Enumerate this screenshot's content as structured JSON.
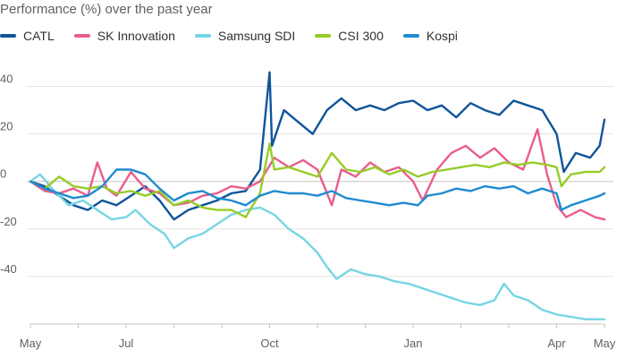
{
  "chart_data": {
    "type": "line",
    "title": "Performance (%) over the past year",
    "xlabel": "",
    "ylabel": "",
    "ylim": [
      -60,
      47
    ],
    "yticks": [
      40,
      20,
      0,
      -20,
      -40
    ],
    "xlim": [
      0,
      12
    ],
    "xticks": [
      {
        "label": "May",
        "x": 0
      },
      {
        "label": "Jul",
        "x": 2
      },
      {
        "label": "Oct",
        "x": 5
      },
      {
        "label": "Jan",
        "x": 8
      },
      {
        "label": "Apr",
        "x": 11
      },
      {
        "label": "May",
        "x": 12
      }
    ],
    "grid": true,
    "legend_position": "top-left",
    "series": [
      {
        "name": "CATL",
        "color": "#0f5499",
        "points": [
          [
            0,
            0
          ],
          [
            0.3,
            -2
          ],
          [
            0.6,
            -6
          ],
          [
            0.9,
            -10
          ],
          [
            1.2,
            -12
          ],
          [
            1.5,
            -8
          ],
          [
            1.8,
            -10
          ],
          [
            2.1,
            -6
          ],
          [
            2.4,
            -2
          ],
          [
            2.7,
            -8
          ],
          [
            3.0,
            -16
          ],
          [
            3.3,
            -12
          ],
          [
            3.6,
            -10
          ],
          [
            3.9,
            -8
          ],
          [
            4.2,
            -5
          ],
          [
            4.5,
            -4
          ],
          [
            4.8,
            5
          ],
          [
            5.0,
            46
          ],
          [
            5.05,
            15
          ],
          [
            5.3,
            30
          ],
          [
            5.6,
            25
          ],
          [
            5.9,
            20
          ],
          [
            6.2,
            30
          ],
          [
            6.5,
            35
          ],
          [
            6.8,
            30
          ],
          [
            7.1,
            32
          ],
          [
            7.4,
            30
          ],
          [
            7.7,
            33
          ],
          [
            8.0,
            34
          ],
          [
            8.3,
            30
          ],
          [
            8.6,
            32
          ],
          [
            8.9,
            27
          ],
          [
            9.2,
            33
          ],
          [
            9.5,
            30
          ],
          [
            9.8,
            28
          ],
          [
            10.1,
            34
          ],
          [
            10.4,
            32
          ],
          [
            10.7,
            30
          ],
          [
            11.0,
            20
          ],
          [
            11.15,
            4
          ],
          [
            11.4,
            12
          ],
          [
            11.7,
            10
          ],
          [
            11.9,
            15
          ],
          [
            12.0,
            26
          ]
        ]
      },
      {
        "name": "SK Innovation",
        "color": "#e95d8c",
        "points": [
          [
            0,
            0
          ],
          [
            0.3,
            -4
          ],
          [
            0.6,
            -5
          ],
          [
            0.9,
            -3
          ],
          [
            1.2,
            -6
          ],
          [
            1.4,
            8
          ],
          [
            1.6,
            -3
          ],
          [
            1.8,
            -6
          ],
          [
            2.1,
            4
          ],
          [
            2.4,
            -3
          ],
          [
            2.7,
            -5
          ],
          [
            3.0,
            -10
          ],
          [
            3.3,
            -9
          ],
          [
            3.6,
            -6
          ],
          [
            3.9,
            -5
          ],
          [
            4.2,
            -2
          ],
          [
            4.5,
            -3
          ],
          [
            4.8,
            0
          ],
          [
            5.1,
            10
          ],
          [
            5.4,
            6
          ],
          [
            5.7,
            9
          ],
          [
            6.0,
            5
          ],
          [
            6.3,
            -10
          ],
          [
            6.5,
            5
          ],
          [
            6.8,
            2
          ],
          [
            7.1,
            8
          ],
          [
            7.4,
            4
          ],
          [
            7.7,
            6
          ],
          [
            8.0,
            0
          ],
          [
            8.2,
            -8
          ],
          [
            8.5,
            5
          ],
          [
            8.8,
            12
          ],
          [
            9.1,
            15
          ],
          [
            9.4,
            10
          ],
          [
            9.7,
            14
          ],
          [
            10.0,
            8
          ],
          [
            10.3,
            5
          ],
          [
            10.6,
            22
          ],
          [
            10.8,
            3
          ],
          [
            11.0,
            -10
          ],
          [
            11.2,
            -15
          ],
          [
            11.5,
            -12
          ],
          [
            11.8,
            -15
          ],
          [
            12.0,
            -16
          ]
        ]
      },
      {
        "name": "Samsung SDI",
        "color": "#76d5e3",
        "points": [
          [
            0,
            0
          ],
          [
            0.2,
            3
          ],
          [
            0.5,
            -4
          ],
          [
            0.8,
            -10
          ],
          [
            1.1,
            -8
          ],
          [
            1.4,
            -12
          ],
          [
            1.7,
            -16
          ],
          [
            2.0,
            -15
          ],
          [
            2.2,
            -12
          ],
          [
            2.5,
            -18
          ],
          [
            2.8,
            -22
          ],
          [
            3.0,
            -28
          ],
          [
            3.3,
            -24
          ],
          [
            3.6,
            -22
          ],
          [
            3.9,
            -18
          ],
          [
            4.2,
            -14
          ],
          [
            4.5,
            -12
          ],
          [
            4.8,
            -11
          ],
          [
            5.1,
            -14
          ],
          [
            5.4,
            -20
          ],
          [
            5.7,
            -24
          ],
          [
            6.0,
            -30
          ],
          [
            6.2,
            -36
          ],
          [
            6.4,
            -41
          ],
          [
            6.7,
            -37
          ],
          [
            7.0,
            -39
          ],
          [
            7.3,
            -40
          ],
          [
            7.6,
            -42
          ],
          [
            7.9,
            -43
          ],
          [
            8.2,
            -45
          ],
          [
            8.5,
            -47
          ],
          [
            8.8,
            -49
          ],
          [
            9.1,
            -51
          ],
          [
            9.4,
            -52
          ],
          [
            9.7,
            -50
          ],
          [
            9.9,
            -43
          ],
          [
            10.1,
            -48
          ],
          [
            10.4,
            -50
          ],
          [
            10.7,
            -54
          ],
          [
            11.0,
            -56
          ],
          [
            11.3,
            -57
          ],
          [
            11.6,
            -58
          ],
          [
            11.9,
            -58
          ],
          [
            12.0,
            -58
          ]
        ]
      },
      {
        "name": "CSI 300",
        "color": "#96cc28",
        "points": [
          [
            0,
            0
          ],
          [
            0.3,
            -3
          ],
          [
            0.6,
            2
          ],
          [
            0.9,
            -2
          ],
          [
            1.2,
            -3
          ],
          [
            1.5,
            -2
          ],
          [
            1.8,
            -5
          ],
          [
            2.1,
            -4
          ],
          [
            2.4,
            -6
          ],
          [
            2.7,
            -4
          ],
          [
            3.0,
            -10
          ],
          [
            3.3,
            -8
          ],
          [
            3.6,
            -11
          ],
          [
            3.9,
            -12
          ],
          [
            4.2,
            -12
          ],
          [
            4.5,
            -15
          ],
          [
            4.8,
            -5
          ],
          [
            5.0,
            16
          ],
          [
            5.1,
            5
          ],
          [
            5.4,
            6
          ],
          [
            5.7,
            4
          ],
          [
            6.0,
            2
          ],
          [
            6.3,
            12
          ],
          [
            6.6,
            5
          ],
          [
            6.9,
            4
          ],
          [
            7.2,
            6
          ],
          [
            7.5,
            3
          ],
          [
            7.8,
            5
          ],
          [
            8.1,
            2
          ],
          [
            8.4,
            4
          ],
          [
            8.7,
            5
          ],
          [
            9.0,
            6
          ],
          [
            9.3,
            7
          ],
          [
            9.6,
            6
          ],
          [
            9.9,
            8
          ],
          [
            10.2,
            7
          ],
          [
            10.5,
            8
          ],
          [
            10.8,
            7
          ],
          [
            11.0,
            6
          ],
          [
            11.1,
            -2
          ],
          [
            11.3,
            3
          ],
          [
            11.6,
            4
          ],
          [
            11.9,
            4
          ],
          [
            12.0,
            6
          ]
        ]
      },
      {
        "name": "Kospi",
        "color": "#1e8bd0",
        "points": [
          [
            0,
            0
          ],
          [
            0.3,
            -3
          ],
          [
            0.6,
            -5
          ],
          [
            0.9,
            -7
          ],
          [
            1.2,
            -6
          ],
          [
            1.5,
            -2
          ],
          [
            1.8,
            5
          ],
          [
            2.1,
            5
          ],
          [
            2.4,
            3
          ],
          [
            2.7,
            -3
          ],
          [
            3.0,
            -8
          ],
          [
            3.3,
            -5
          ],
          [
            3.6,
            -4
          ],
          [
            3.9,
            -7
          ],
          [
            4.2,
            -8
          ],
          [
            4.5,
            -10
          ],
          [
            4.8,
            -6
          ],
          [
            5.1,
            -4
          ],
          [
            5.4,
            -5
          ],
          [
            5.7,
            -5
          ],
          [
            6.0,
            -6
          ],
          [
            6.3,
            -4
          ],
          [
            6.6,
            -7
          ],
          [
            6.9,
            -8
          ],
          [
            7.2,
            -9
          ],
          [
            7.5,
            -10
          ],
          [
            7.8,
            -9
          ],
          [
            8.1,
            -10
          ],
          [
            8.3,
            -6
          ],
          [
            8.6,
            -5
          ],
          [
            8.9,
            -3
          ],
          [
            9.2,
            -4
          ],
          [
            9.5,
            -2
          ],
          [
            9.8,
            -3
          ],
          [
            10.1,
            -2
          ],
          [
            10.4,
            -5
          ],
          [
            10.7,
            -3
          ],
          [
            11.0,
            -5
          ],
          [
            11.1,
            -12
          ],
          [
            11.3,
            -10
          ],
          [
            11.6,
            -8
          ],
          [
            11.9,
            -6
          ],
          [
            12.0,
            -5
          ]
        ]
      }
    ]
  }
}
